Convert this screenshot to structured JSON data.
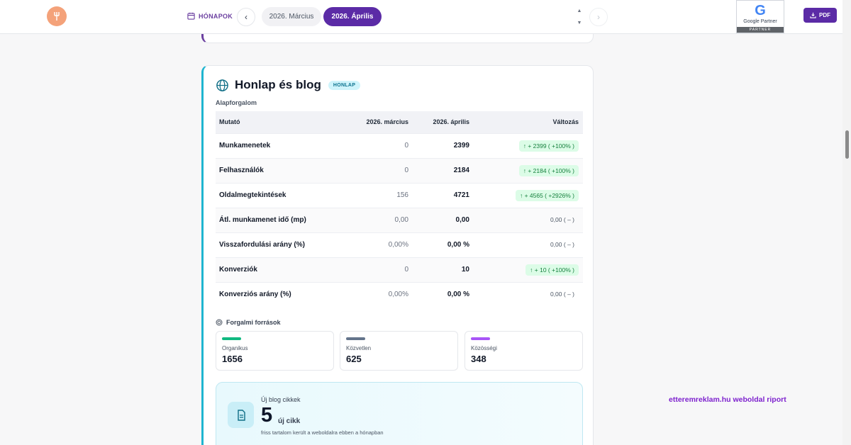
{
  "header": {
    "months_label": "HÓNAPOK",
    "months": [
      {
        "label": "2026. Március",
        "active": false
      },
      {
        "label": "2026. Április",
        "active": true
      }
    ],
    "partner": {
      "line1": "Google Partner",
      "line2": "PARTNER"
    },
    "pdf_label": "PDF"
  },
  "card": {
    "title": "Honlap és blog",
    "badge": "HONLAP",
    "section_label": "Alapforgalom",
    "columns": [
      "Mutató",
      "2026. március",
      "2026. április",
      "Változás"
    ],
    "rows": [
      {
        "name": "Munkamenetek",
        "mar": "0",
        "apr": "2399",
        "change": "↑ + 2399 ( +100% )",
        "positive": true
      },
      {
        "name": "Felhasználók",
        "mar": "0",
        "apr": "2184",
        "change": "↑ + 2184 ( +100% )",
        "positive": true
      },
      {
        "name": "Oldalmegtekintések",
        "mar": "156",
        "apr": "4721",
        "change": "↑ + 4565 ( +2926% )",
        "positive": true
      },
      {
        "name": "Átl. munkamenet idő (mp)",
        "mar": "0,00",
        "apr": "0,00",
        "change": "0,00 ( – )",
        "positive": false
      },
      {
        "name": "Visszafordulási arány (%)",
        "mar": "0,00%",
        "apr": "0,00 %",
        "change": "0,00 ( – )",
        "positive": false
      },
      {
        "name": "Konverziók",
        "mar": "0",
        "apr": "10",
        "change": "↑ + 10 ( +100% )",
        "positive": true
      },
      {
        "name": "Konverziós arány (%)",
        "mar": "0,00%",
        "apr": "0,00 %",
        "change": "0,00 ( – )",
        "positive": false
      }
    ],
    "sources_label": "Forgalmi források",
    "sources": [
      {
        "name": "Organikus",
        "value": "1656",
        "color": "#10b981"
      },
      {
        "name": "Közvetlen",
        "value": "625",
        "color": "#64748b"
      },
      {
        "name": "Közösségi",
        "value": "348",
        "color": "#a855f7"
      }
    ],
    "blog": {
      "title": "Új blog cikkek",
      "count": "5",
      "unit": "új cikk",
      "subtitle": "friss tartalom került a weboldalra ebben a hónapban"
    }
  },
  "footer": {
    "brand": "etteremreklam.hu weboldal riport"
  },
  "colors": {
    "accent": "#5b2ba6",
    "card_accent": "#1fb5d0",
    "positive": "#15803d"
  }
}
